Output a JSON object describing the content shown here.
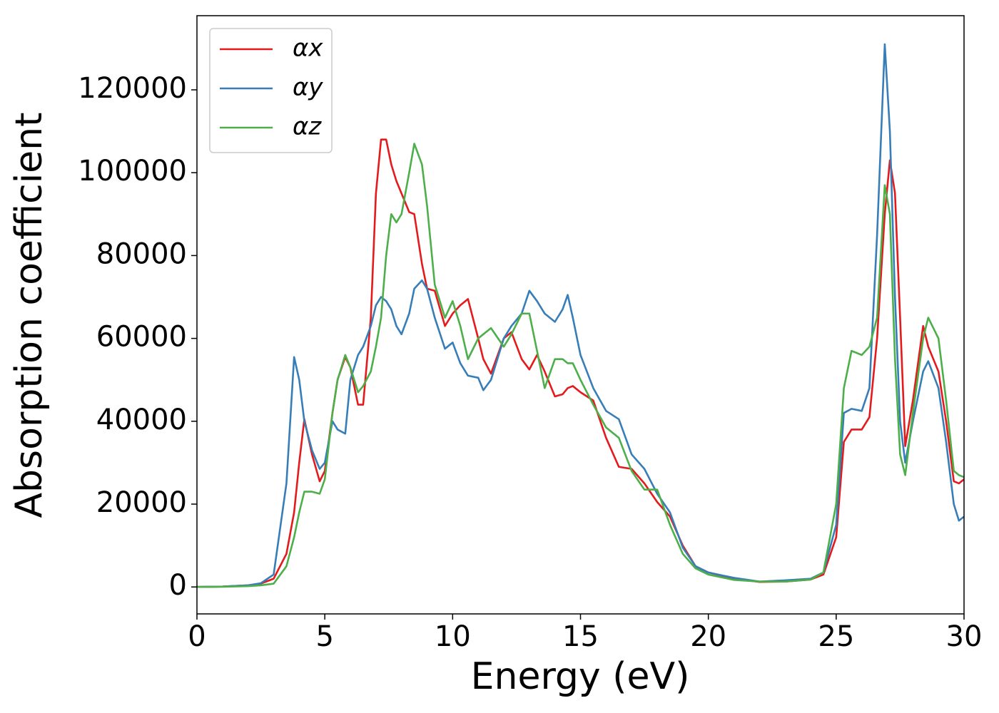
{
  "chart_data": {
    "type": "line",
    "xlabel": "Energy (eV)",
    "ylabel": "Absorption coefficient",
    "x": [
      0,
      1,
      2,
      2.5,
      3,
      3.5,
      3.8,
      4,
      4.2,
      4.5,
      4.8,
      5,
      5.3,
      5.5,
      5.8,
      6,
      6.3,
      6.5,
      6.8,
      7,
      7.2,
      7.4,
      7.6,
      7.8,
      8,
      8.3,
      8.5,
      8.8,
      9,
      9.3,
      9.7,
      10,
      10.3,
      10.6,
      11,
      11.2,
      11.5,
      12,
      12.3,
      12.7,
      13,
      13.3,
      13.6,
      14,
      14.3,
      14.5,
      14.7,
      15,
      15.5,
      16,
      16.5,
      17,
      17.5,
      18,
      18.5,
      19,
      19.5,
      20,
      21,
      22,
      23,
      24,
      24.5,
      25,
      25.3,
      25.6,
      26,
      26.3,
      26.6,
      26.9,
      27.1,
      27.3,
      27.5,
      27.7,
      28,
      28.4,
      28.6,
      29,
      29.3,
      29.6,
      29.8,
      30
    ],
    "series": [
      {
        "name": "αx",
        "color": "#e41a1c",
        "values": [
          0,
          100,
          400,
          800,
          2000,
          8000,
          18000,
          30000,
          40500,
          32000,
          25500,
          28000,
          42000,
          50000,
          55500,
          53000,
          44000,
          44000,
          65000,
          95000,
          108000,
          108000,
          102000,
          98000,
          95000,
          90500,
          90000,
          78000,
          72000,
          71500,
          63000,
          66000,
          68000,
          69500,
          60000,
          55000,
          51500,
          60000,
          61500,
          55000,
          52500,
          56000,
          52000,
          46000,
          46500,
          48000,
          48500,
          47000,
          45000,
          36000,
          29000,
          28500,
          25000,
          20500,
          17000,
          10000,
          5000,
          3500,
          2000,
          1200,
          1300,
          1800,
          3000,
          12000,
          35000,
          38000,
          38000,
          41000,
          60000,
          90000,
          103000,
          95000,
          65000,
          34000,
          45000,
          63000,
          58000,
          52000,
          40000,
          25500,
          25000,
          26000
        ]
      },
      {
        "name": "αy",
        "color": "#377eb8",
        "values": [
          0,
          100,
          400,
          900,
          3000,
          25000,
          55500,
          50000,
          40000,
          33000,
          28500,
          30000,
          40000,
          38000,
          37000,
          50000,
          56000,
          58000,
          63000,
          68000,
          70000,
          69000,
          67000,
          63000,
          61000,
          66000,
          72000,
          74000,
          72000,
          65000,
          57500,
          59000,
          54000,
          51000,
          50500,
          47500,
          50000,
          60000,
          63000,
          66000,
          71500,
          69000,
          66000,
          64000,
          67000,
          70500,
          65000,
          56000,
          48000,
          42500,
          40500,
          32000,
          28500,
          22500,
          18000,
          9500,
          5000,
          3500,
          2200,
          1300,
          1600,
          2000,
          3500,
          15000,
          42000,
          43000,
          42500,
          48000,
          85000,
          131000,
          110000,
          70000,
          40000,
          30000,
          40000,
          52000,
          54500,
          48000,
          35000,
          20000,
          16000,
          17000
        ]
      },
      {
        "name": "αz",
        "color": "#4daf4a",
        "values": [
          0,
          50,
          200,
          400,
          800,
          5000,
          12000,
          18000,
          23000,
          23000,
          22500,
          26000,
          42000,
          50000,
          56000,
          53000,
          47000,
          48500,
          52000,
          58000,
          65000,
          80000,
          90000,
          88000,
          90000,
          100000,
          107000,
          102000,
          92000,
          73000,
          65000,
          69000,
          63000,
          55000,
          60000,
          61000,
          62500,
          58000,
          61000,
          66000,
          66000,
          57000,
          48000,
          55000,
          55000,
          54000,
          54000,
          50000,
          44000,
          38500,
          36000,
          28000,
          23500,
          23500,
          15000,
          8000,
          4500,
          3000,
          1700,
          1300,
          1300,
          1800,
          3500,
          20000,
          48000,
          57000,
          56000,
          58000,
          65000,
          97000,
          90000,
          55000,
          32000,
          27000,
          42000,
          60000,
          65000,
          60000,
          45000,
          28000,
          27000,
          26500
        ]
      }
    ],
    "xlim": [
      0,
      30
    ],
    "xticks": [
      0,
      5,
      10,
      15,
      20,
      25,
      30
    ],
    "ylim": [
      -6500,
      137900
    ],
    "yticks": [
      0,
      20000,
      40000,
      60000,
      80000,
      100000,
      120000
    ],
    "legend": "upper left",
    "grid": false
  }
}
